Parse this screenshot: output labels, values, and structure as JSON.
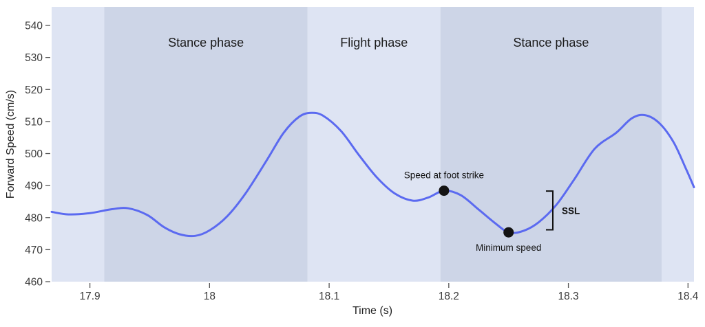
{
  "chart_data": {
    "type": "line",
    "title": "",
    "xlabel": "Time (s)",
    "ylabel": "Forward Speed (cm/s)",
    "xlim": [
      17.868,
      18.405
    ],
    "ylim": [
      460,
      545.8
    ],
    "xticks": [
      17.9,
      18.0,
      18.1,
      18.2,
      18.3,
      18.4
    ],
    "xtick_labels": [
      "17.9",
      "18",
      "18.1",
      "18.2",
      "18.3",
      "18.4"
    ],
    "yticks": [
      460,
      470,
      480,
      490,
      500,
      510,
      520,
      530,
      540
    ],
    "ytick_labels": [
      "460",
      "470",
      "480",
      "490",
      "500",
      "510",
      "520",
      "530",
      "540"
    ],
    "grid": false,
    "legend": "none",
    "line_color": "#5b6af0",
    "marker_color": "#141414",
    "band_colors": {
      "light": "#dee4f3",
      "dark": "#cdd5e7"
    },
    "bands": [
      {
        "x0": 17.868,
        "x1": 17.912,
        "shade": "light",
        "label": ""
      },
      {
        "x0": 17.912,
        "x1": 18.082,
        "shade": "dark",
        "label": "Stance phase"
      },
      {
        "x0": 18.082,
        "x1": 18.193,
        "shade": "light",
        "label": "Flight phase"
      },
      {
        "x0": 18.193,
        "x1": 18.378,
        "shade": "dark",
        "label": "Stance phase"
      },
      {
        "x0": 18.378,
        "x1": 18.405,
        "shade": "light",
        "label": ""
      }
    ],
    "series": [
      {
        "name": "forward-speed",
        "points": [
          [
            17.868,
            481.8
          ],
          [
            17.882,
            481.0
          ],
          [
            17.9,
            481.4
          ],
          [
            17.918,
            482.6
          ],
          [
            17.932,
            482.9
          ],
          [
            17.948,
            480.8
          ],
          [
            17.962,
            477.0
          ],
          [
            17.975,
            474.8
          ],
          [
            17.988,
            474.3
          ],
          [
            18.0,
            476.0
          ],
          [
            18.015,
            480.5
          ],
          [
            18.03,
            487.5
          ],
          [
            18.048,
            498.0
          ],
          [
            18.062,
            506.5
          ],
          [
            18.075,
            511.5
          ],
          [
            18.085,
            512.7
          ],
          [
            18.095,
            511.8
          ],
          [
            18.11,
            507.0
          ],
          [
            18.125,
            499.5
          ],
          [
            18.14,
            492.5
          ],
          [
            18.155,
            487.5
          ],
          [
            18.17,
            485.3
          ],
          [
            18.183,
            486.3
          ],
          [
            18.196,
            488.4
          ],
          [
            18.21,
            487.0
          ],
          [
            18.225,
            482.5
          ],
          [
            18.238,
            478.5
          ],
          [
            18.25,
            475.4
          ],
          [
            18.262,
            475.8
          ],
          [
            18.275,
            478.5
          ],
          [
            18.29,
            484.0
          ],
          [
            18.305,
            492.0
          ],
          [
            18.322,
            501.5
          ],
          [
            18.34,
            506.5
          ],
          [
            18.353,
            511.0
          ],
          [
            18.364,
            512.0
          ],
          [
            18.376,
            509.5
          ],
          [
            18.388,
            503.5
          ],
          [
            18.398,
            495.5
          ],
          [
            18.405,
            489.5
          ]
        ]
      }
    ],
    "markers": [
      {
        "t": 18.196,
        "v": 488.4,
        "label": "Speed at foot strike",
        "label_position": "above"
      },
      {
        "t": 18.25,
        "v": 475.4,
        "label": "Minimum speed",
        "label_position": "below"
      }
    ],
    "bracket": {
      "t": 18.287,
      "v_top": 488.3,
      "v_bottom": 476.2,
      "label": "SSL"
    }
  }
}
